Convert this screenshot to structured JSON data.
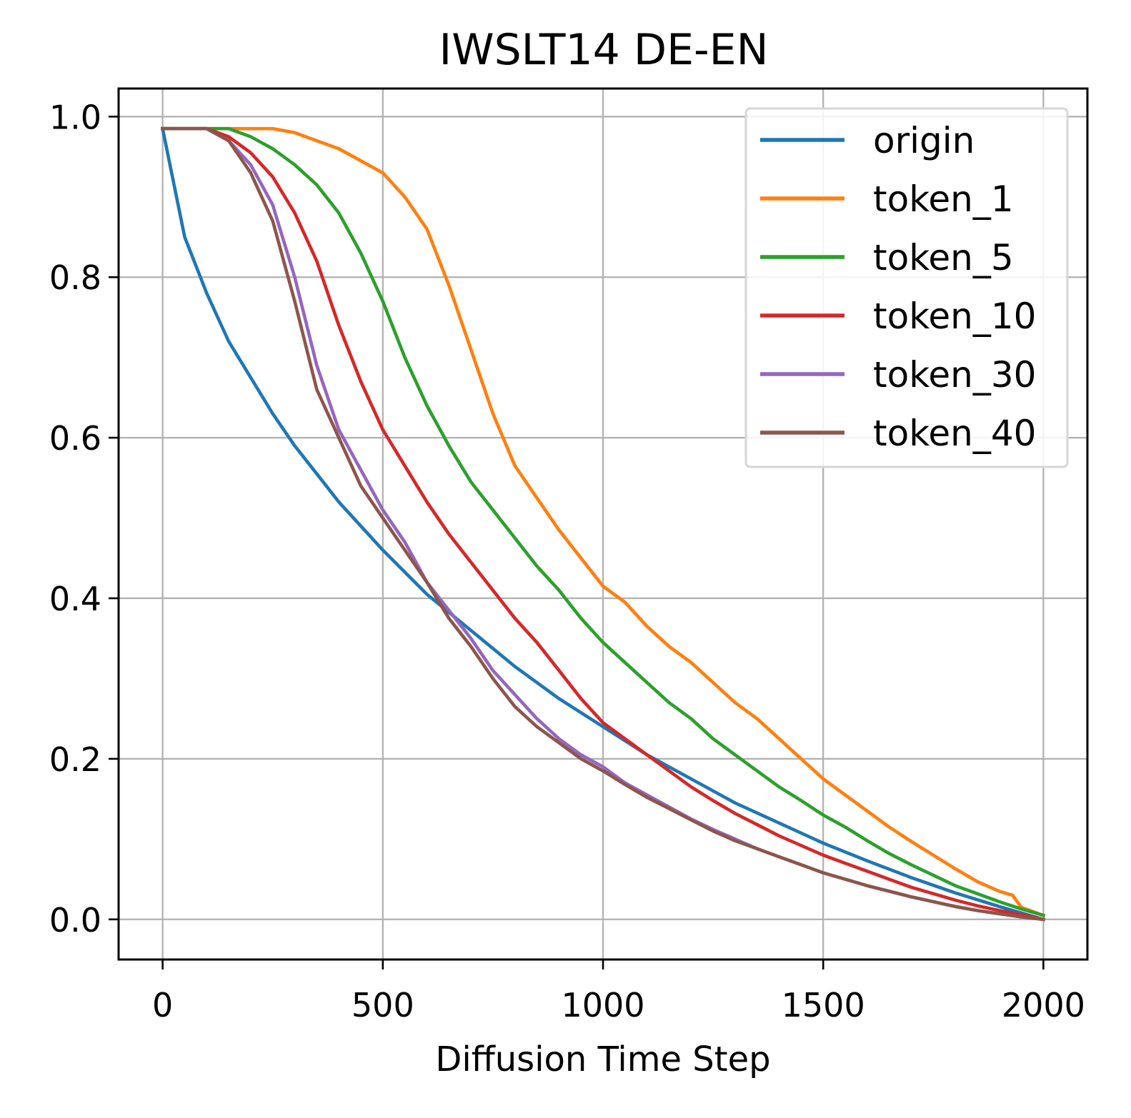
{
  "chart_data": {
    "type": "line",
    "title": "IWSLT14 DE-EN",
    "xlabel": "Diffusion Time Step",
    "ylabel": "",
    "xlim": [
      -100,
      2100
    ],
    "ylim": [
      -0.05,
      1.035
    ],
    "xticks": [
      0,
      500,
      1000,
      1500,
      2000
    ],
    "xtick_labels": [
      "0",
      "500",
      "1000",
      "1500",
      "2000"
    ],
    "yticks": [
      0.0,
      0.2,
      0.4,
      0.6,
      0.8,
      1.0
    ],
    "ytick_labels": [
      "0.0",
      "0.2",
      "0.4",
      "0.6",
      "0.8",
      "1.0"
    ],
    "grid": true,
    "legend_position": "top-right",
    "series": [
      {
        "name": "origin",
        "color": "#1f77b4",
        "x": [
          0,
          50,
          100,
          150,
          200,
          250,
          300,
          350,
          400,
          450,
          500,
          600,
          700,
          800,
          900,
          1000,
          1100,
          1200,
          1300,
          1400,
          1500,
          1600,
          1700,
          1800,
          1900,
          2000
        ],
        "y": [
          0.985,
          0.85,
          0.78,
          0.72,
          0.675,
          0.63,
          0.59,
          0.555,
          0.52,
          0.49,
          0.46,
          0.405,
          0.36,
          0.315,
          0.275,
          0.24,
          0.205,
          0.175,
          0.145,
          0.12,
          0.095,
          0.073,
          0.052,
          0.033,
          0.016,
          0.0
        ]
      },
      {
        "name": "token_1",
        "color": "#ff7f0e",
        "x": [
          0,
          100,
          200,
          250,
          300,
          350,
          400,
          450,
          500,
          550,
          600,
          650,
          700,
          750,
          800,
          850,
          900,
          950,
          1000,
          1050,
          1100,
          1150,
          1200,
          1250,
          1300,
          1350,
          1400,
          1450,
          1500,
          1550,
          1600,
          1650,
          1700,
          1750,
          1800,
          1850,
          1900,
          1930,
          1950,
          2000
        ],
        "y": [
          0.985,
          0.985,
          0.985,
          0.985,
          0.98,
          0.97,
          0.96,
          0.945,
          0.93,
          0.9,
          0.86,
          0.79,
          0.71,
          0.63,
          0.565,
          0.525,
          0.485,
          0.45,
          0.415,
          0.395,
          0.365,
          0.34,
          0.32,
          0.295,
          0.27,
          0.25,
          0.225,
          0.2,
          0.175,
          0.155,
          0.135,
          0.115,
          0.097,
          0.08,
          0.063,
          0.047,
          0.035,
          0.03,
          0.015,
          0.005
        ]
      },
      {
        "name": "token_5",
        "color": "#2ca02c",
        "x": [
          0,
          100,
          150,
          200,
          250,
          300,
          350,
          400,
          450,
          500,
          550,
          600,
          650,
          700,
          750,
          800,
          850,
          900,
          950,
          1000,
          1050,
          1100,
          1150,
          1200,
          1250,
          1300,
          1350,
          1400,
          1450,
          1500,
          1550,
          1600,
          1650,
          1700,
          1750,
          1800,
          1850,
          1900,
          1950,
          2000
        ],
        "y": [
          0.985,
          0.985,
          0.985,
          0.975,
          0.96,
          0.94,
          0.915,
          0.88,
          0.83,
          0.77,
          0.7,
          0.64,
          0.59,
          0.545,
          0.51,
          0.475,
          0.44,
          0.41,
          0.375,
          0.345,
          0.32,
          0.295,
          0.27,
          0.25,
          0.225,
          0.205,
          0.185,
          0.165,
          0.148,
          0.13,
          0.115,
          0.098,
          0.082,
          0.068,
          0.055,
          0.042,
          0.032,
          0.022,
          0.013,
          0.005
        ]
      },
      {
        "name": "token_10",
        "color": "#d62728",
        "x": [
          0,
          80,
          100,
          150,
          200,
          250,
          300,
          350,
          400,
          450,
          500,
          550,
          600,
          650,
          700,
          750,
          800,
          850,
          900,
          950,
          1000,
          1050,
          1100,
          1150,
          1200,
          1250,
          1300,
          1350,
          1400,
          1450,
          1500,
          1550,
          1600,
          1650,
          1700,
          1750,
          1800,
          1850,
          1900,
          1950,
          2000
        ],
        "y": [
          0.985,
          0.985,
          0.985,
          0.975,
          0.955,
          0.925,
          0.88,
          0.82,
          0.74,
          0.67,
          0.61,
          0.565,
          0.52,
          0.48,
          0.445,
          0.41,
          0.375,
          0.345,
          0.31,
          0.275,
          0.245,
          0.225,
          0.205,
          0.185,
          0.165,
          0.148,
          0.132,
          0.118,
          0.104,
          0.092,
          0.08,
          0.07,
          0.06,
          0.05,
          0.04,
          0.032,
          0.024,
          0.017,
          0.011,
          0.006,
          0.0
        ]
      },
      {
        "name": "token_30",
        "color": "#9467bd",
        "x": [
          0,
          80,
          100,
          150,
          200,
          250,
          300,
          350,
          400,
          450,
          500,
          550,
          600,
          650,
          700,
          750,
          800,
          850,
          900,
          950,
          1000,
          1050,
          1100,
          1150,
          1200,
          1250,
          1300,
          1350,
          1400,
          1450,
          1500,
          1550,
          1600,
          1650,
          1700,
          1750,
          1800,
          1850,
          1900,
          1950,
          2000
        ],
        "y": [
          0.985,
          0.985,
          0.985,
          0.97,
          0.94,
          0.89,
          0.8,
          0.69,
          0.61,
          0.56,
          0.51,
          0.47,
          0.42,
          0.385,
          0.35,
          0.31,
          0.28,
          0.25,
          0.225,
          0.205,
          0.19,
          0.17,
          0.155,
          0.14,
          0.125,
          0.112,
          0.1,
          0.088,
          0.078,
          0.068,
          0.058,
          0.05,
          0.042,
          0.035,
          0.028,
          0.022,
          0.016,
          0.011,
          0.007,
          0.003,
          0.0
        ]
      },
      {
        "name": "token_40",
        "color": "#8c564b",
        "x": [
          0,
          80,
          100,
          150,
          200,
          250,
          300,
          350,
          400,
          450,
          500,
          550,
          600,
          650,
          700,
          750,
          800,
          850,
          900,
          950,
          1000,
          1050,
          1100,
          1150,
          1200,
          1250,
          1300,
          1350,
          1400,
          1450,
          1500,
          1550,
          1600,
          1650,
          1700,
          1750,
          1800,
          1850,
          1900,
          1950,
          2000
        ],
        "y": [
          0.985,
          0.985,
          0.985,
          0.97,
          0.93,
          0.87,
          0.77,
          0.66,
          0.6,
          0.54,
          0.5,
          0.46,
          0.42,
          0.375,
          0.34,
          0.3,
          0.265,
          0.24,
          0.22,
          0.2,
          0.185,
          0.168,
          0.152,
          0.138,
          0.124,
          0.11,
          0.098,
          0.088,
          0.078,
          0.068,
          0.058,
          0.05,
          0.042,
          0.035,
          0.028,
          0.022,
          0.016,
          0.011,
          0.007,
          0.003,
          0.0
        ]
      }
    ]
  }
}
